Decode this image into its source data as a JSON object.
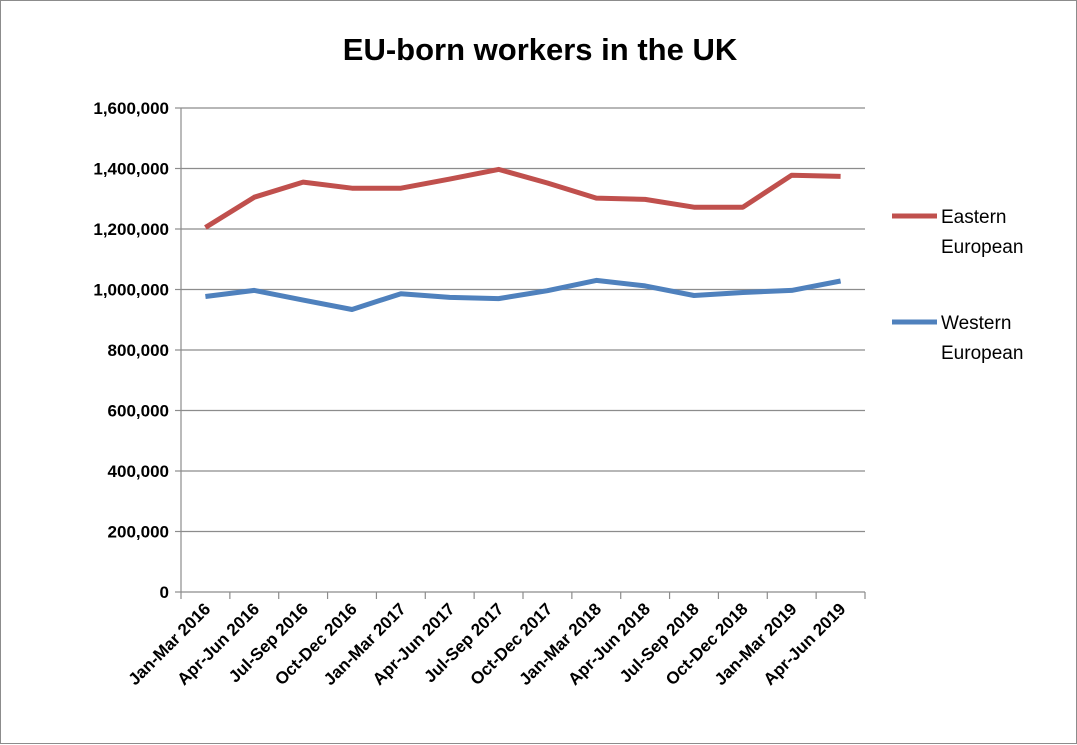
{
  "chart_data": {
    "type": "line",
    "title": "EU-born workers in the UK",
    "xlabel": "",
    "ylabel": "",
    "ylim": [
      0,
      1600000
    ],
    "y_ticks": [
      0,
      200000,
      400000,
      600000,
      800000,
      1000000,
      1200000,
      1400000,
      1600000
    ],
    "y_tick_labels": [
      "0",
      "200,000",
      "400,000",
      "600,000",
      "800,000",
      "1,000,000",
      "1,200,000",
      "1,400,000",
      "1,600,000"
    ],
    "categories": [
      "Jan-Mar 2016",
      "Apr-Jun 2016",
      "Jul-Sep 2016",
      "Oct-Dec 2016",
      "Jan-Mar 2017",
      "Apr-Jun 2017",
      "Jul-Sep 2017",
      "Oct-Dec 2017",
      "Jan-Mar 2018",
      "Apr-Jun 2018",
      "Jul-Sep 2018",
      "Oct-Dec 2018",
      "Jan-Mar 2019",
      "Apr-Jun 2019"
    ],
    "grid": true,
    "legend_position": "right",
    "series": [
      {
        "name": "Eastern European",
        "legend_lines": [
          "Eastern",
          "European"
        ],
        "color": "#c0504d",
        "values": [
          1205000,
          1305000,
          1355000,
          1335000,
          1335000,
          1365000,
          1397000,
          1352000,
          1302000,
          1298000,
          1272000,
          1272000,
          1378000,
          1374000
        ]
      },
      {
        "name": "Western European",
        "legend_lines": [
          "Western",
          "European"
        ],
        "color": "#4f81bd",
        "values": [
          977000,
          997000,
          965000,
          934000,
          986000,
          974000,
          970000,
          996000,
          1030000,
          1012000,
          980000,
          990000,
          997000,
          1028000
        ]
      }
    ]
  }
}
